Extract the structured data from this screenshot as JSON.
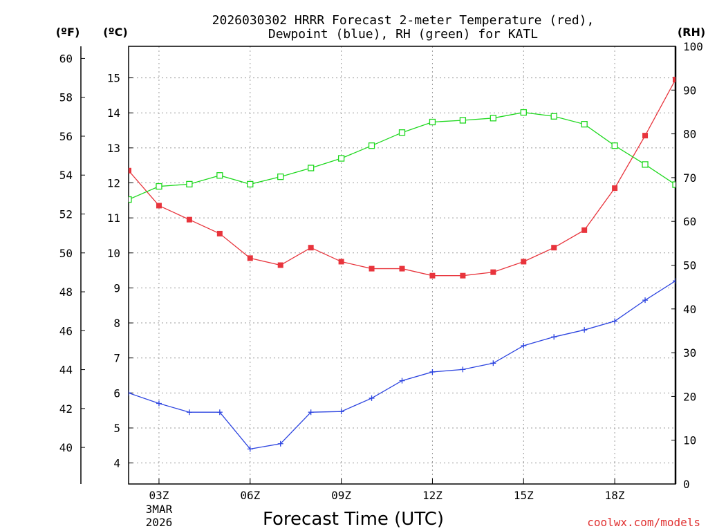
{
  "chart_data": {
    "type": "line",
    "title": "2026030302 HRRR Forecast 2-meter Temperature (red),",
    "title_line2": "Dewpoint (blue), RH (green) for KATL",
    "xlabel": "Forecast Time (UTC)",
    "credit": "coolwx.com/models",
    "units": {
      "f": "(ºF)",
      "c": "(ºC)",
      "rh": "(RH)"
    },
    "x": [
      2,
      3,
      4,
      5,
      6,
      7,
      8,
      9,
      10,
      11,
      12,
      13,
      14,
      15,
      16,
      17,
      18,
      19,
      20
    ],
    "xlim": [
      2,
      20
    ],
    "x_ticks": [
      {
        "x": 3,
        "label": "03Z",
        "sub1": "3MAR",
        "sub2": "2026"
      },
      {
        "x": 6,
        "label": "06Z"
      },
      {
        "x": 9,
        "label": "09Z"
      },
      {
        "x": 12,
        "label": "12Z"
      },
      {
        "x": 15,
        "label": "15Z"
      },
      {
        "x": 18,
        "label": "18Z"
      }
    ],
    "celsius_axis": {
      "ylim": [
        3.4,
        15.9
      ],
      "ticks": [
        4,
        5,
        6,
        7,
        8,
        9,
        10,
        11,
        12,
        13,
        14,
        15
      ],
      "grid": true
    },
    "fahrenheit_axis": {
      "ylim": [
        38.12,
        60.62
      ],
      "ticks": [
        40,
        42,
        44,
        46,
        48,
        50,
        52,
        54,
        56,
        58,
        60
      ]
    },
    "rh_axis": {
      "ylim": [
        0,
        100
      ],
      "ticks": [
        0,
        10,
        20,
        30,
        40,
        50,
        60,
        70,
        80,
        90,
        100
      ]
    },
    "series": [
      {
        "name": "Temperature",
        "axis": "celsius",
        "color": "#e8343c",
        "marker": "filled-square",
        "values": [
          12.35,
          11.35,
          10.95,
          10.55,
          9.85,
          9.65,
          10.15,
          9.75,
          9.55,
          9.55,
          9.35,
          9.35,
          9.45,
          9.75,
          10.15,
          10.65,
          11.85,
          13.35,
          14.95
        ]
      },
      {
        "name": "Dewpoint",
        "axis": "celsius",
        "color": "#2c44e0",
        "marker": "plus",
        "values": [
          6.0,
          5.7,
          5.45,
          5.45,
          4.4,
          4.55,
          5.45,
          5.47,
          5.85,
          6.35,
          6.6,
          6.67,
          6.85,
          7.35,
          7.6,
          7.8,
          8.05,
          8.65,
          9.2
        ]
      },
      {
        "name": "RH",
        "axis": "rh",
        "color": "#1ed81e",
        "marker": "open-square",
        "values": [
          65,
          68,
          68.5,
          70.5,
          68.5,
          70.2,
          72.2,
          74.4,
          77.3,
          80.3,
          82.7,
          83.1,
          83.6,
          84.9,
          84.0,
          82.2,
          77.3,
          73.0,
          68.4
        ]
      }
    ]
  }
}
